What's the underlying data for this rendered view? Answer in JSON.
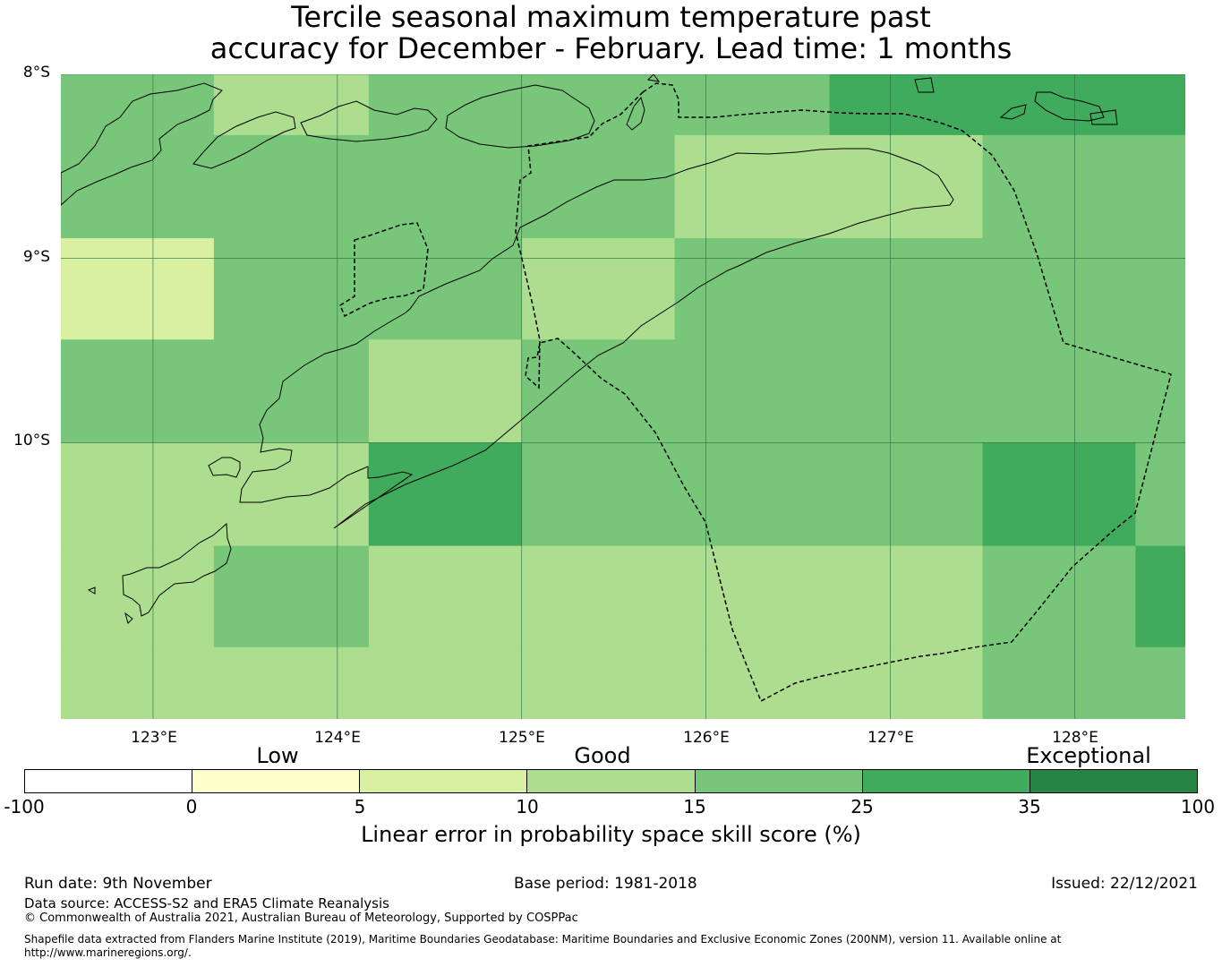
{
  "title": {
    "line1": "Tercile seasonal maximum temperature past",
    "line2": "accuracy for December - February. Lead time: 1 months"
  },
  "map": {
    "lat_labels": [
      "8°S",
      "9°S",
      "10°S"
    ],
    "lon_labels": [
      "123°E",
      "124°E",
      "125°E",
      "126°E",
      "127°E",
      "128°E"
    ],
    "extent": {
      "lon_min": 122.5,
      "lon_max": 128.6,
      "lat_min": -11.5,
      "lat_max": -8.0
    },
    "grid_lons": [
      123,
      124,
      125,
      126,
      127,
      128
    ],
    "grid_lats": [
      -8,
      -9,
      -10
    ],
    "cell_lon_edges": [
      122.5,
      123.33,
      124.17,
      125.0,
      125.83,
      126.67,
      127.5,
      128.33,
      128.6
    ],
    "cell_lat_edges": [
      -8.0,
      -8.33,
      -8.89,
      -9.44,
      -10.0,
      -10.56,
      -11.11,
      -11.5
    ],
    "cell_category": [
      [
        4,
        3,
        4,
        4,
        4,
        5,
        5,
        5
      ],
      [
        4,
        4,
        4,
        4,
        3,
        3,
        4,
        4
      ],
      [
        2,
        4,
        4,
        3,
        4,
        4,
        4,
        4
      ],
      [
        4,
        4,
        3,
        4,
        4,
        4,
        4,
        4
      ],
      [
        3,
        3,
        5,
        4,
        4,
        4,
        5,
        4
      ],
      [
        3,
        4,
        3,
        3,
        3,
        3,
        4,
        5
      ],
      [
        3,
        3,
        3,
        3,
        3,
        3,
        4,
        4
      ]
    ]
  },
  "colorbar": {
    "colors": [
      "#ffffff",
      "#ffffcc",
      "#d9f0a3",
      "#addd8e",
      "#78c679",
      "#41ab5d",
      "#238443"
    ],
    "ticks": [
      "-100",
      "0",
      "5",
      "10",
      "15",
      "25",
      "35",
      "100"
    ],
    "categories": [
      "Low",
      "Good",
      "Exceptional"
    ],
    "label": "Linear error in probability space skill score (%)"
  },
  "footer": {
    "run_date": "Run date: 9th November",
    "base_period": "Base period: 1981-2018",
    "issued": "Issued: 22/12/2021",
    "data_source": "Data source: ACCESS-S2 and ERA5 Climate Reanalysis",
    "copyright": "© Commonwealth of Australia 2021, Australian Bureau of Meteorology, Supported by COSPPac",
    "shapefile_line1": "Shapefile data extracted from Flanders Marine Institute (2019), Maritime Boundaries Geodatabase: Maritime Boundaries and Exclusive Economic Zones (200NM), version 11. Available online at",
    "shapefile_line2": "http://www.marineregions.org/."
  }
}
